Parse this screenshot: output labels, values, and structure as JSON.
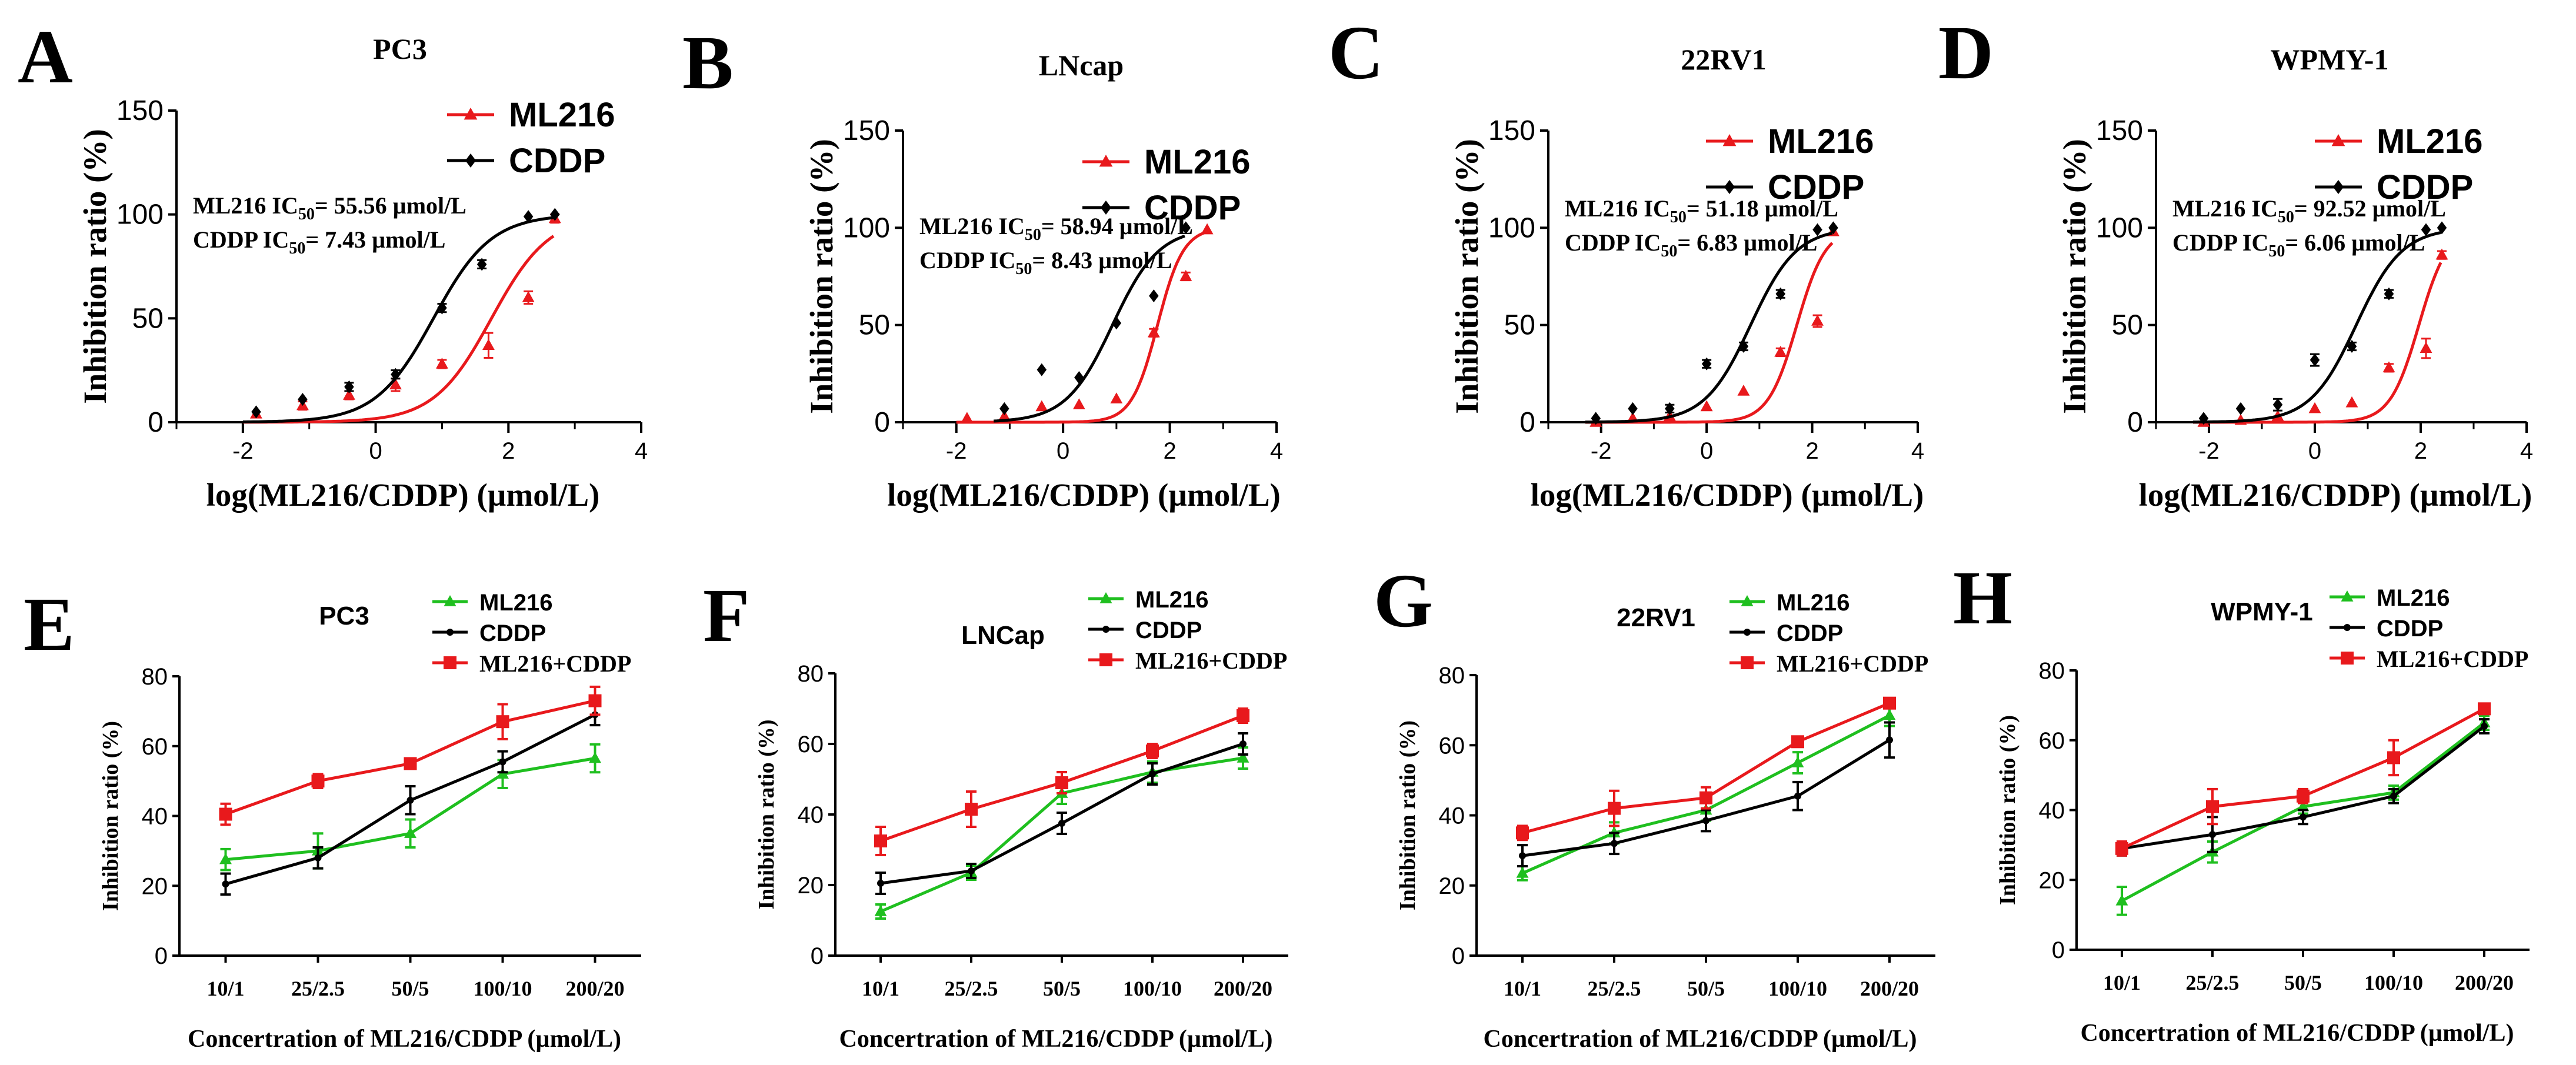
{
  "x_label_top": "log(ML216/CDDP) (µmol/L)",
  "y_label_top": "Inhibition ratio (%)",
  "x_label_bottom": "Concertration of ML216/CDDP (µmol/L)",
  "y_label_bottom": "Inhibition ratio (%)",
  "colors": {
    "ml216_top": "#e8191c",
    "cddp": "#000000",
    "ml216_bottom": "#1fbf1f",
    "combo": "#e8191c"
  },
  "chart_data": [
    {
      "panel": "A",
      "title": "PC3",
      "type": "scatter",
      "xlim": [
        -3,
        4
      ],
      "ylim": [
        0,
        150
      ],
      "x_ticks": [
        "-2",
        "0",
        "2",
        "4"
      ],
      "y_ticks": [
        "0",
        "50",
        "100",
        "150"
      ],
      "legend": [
        "ML216",
        "CDDP"
      ],
      "ic50_ml216": "ML216 IC",
      "ic50_ml216_value": "= 55.56 µmol/L",
      "ic50_cddp": "CDDP IC",
      "ic50_cddp_value": "= 7.43 µmol/L",
      "ic50_sub": "50",
      "series": [
        {
          "name": "ML216",
          "logic50": 1.745,
          "hill": 1.0,
          "x": [
            -1.8,
            -1.1,
            -0.4,
            0.3,
            1.0,
            1.7,
            2.3,
            2.7
          ],
          "y": [
            4,
            8,
            13,
            18,
            28,
            37,
            60,
            98
          ],
          "err": [
            1,
            2,
            2,
            3,
            2,
            6,
            3,
            2
          ]
        },
        {
          "name": "CDDP",
          "logic50": 0.871,
          "hill": 1.0,
          "x": [
            -1.8,
            -1.1,
            -0.4,
            0.3,
            1.0,
            1.6,
            2.3,
            2.7
          ],
          "y": [
            5,
            11,
            17,
            23,
            55,
            76,
            99,
            100
          ],
          "err": [
            1,
            1,
            2,
            2,
            2,
            2,
            1,
            1
          ]
        }
      ]
    },
    {
      "panel": "B",
      "title": "LNcap",
      "type": "scatter",
      "xlim": [
        -3,
        4
      ],
      "ylim": [
        0,
        150
      ],
      "x_ticks": [
        "-2",
        "0",
        "2",
        "4"
      ],
      "y_ticks": [
        "0",
        "50",
        "100",
        "150"
      ],
      "legend": [
        "ML216",
        "CDDP"
      ],
      "ic50_ml216": "ML216 IC",
      "ic50_ml216_value": "= 58.94 µmol/L",
      "ic50_cddp": "CDDP IC",
      "ic50_cddp_value": "= 8.43 µmol/L",
      "ic50_sub": "50",
      "series": [
        {
          "name": "ML216",
          "logic50": 1.77,
          "hill": 1.8,
          "x": [
            -1.8,
            -1.1,
            -0.4,
            0.3,
            1.0,
            1.7,
            2.3,
            2.7
          ],
          "y": [
            2,
            3,
            8,
            9,
            12,
            46,
            75,
            99
          ],
          "err": [
            1,
            1,
            1,
            1,
            1,
            2,
            2,
            1
          ]
        },
        {
          "name": "CDDP",
          "logic50": 0.926,
          "hill": 1.0,
          "x": [
            -1.1,
            -0.4,
            0.3,
            1.0,
            1.7,
            2.3
          ],
          "y": [
            7,
            27,
            23,
            51,
            65,
            100
          ],
          "err": [
            1,
            1,
            1,
            1,
            1,
            1
          ]
        }
      ]
    },
    {
      "panel": "C",
      "title": "22RV1",
      "type": "scatter",
      "xlim": [
        -3,
        4
      ],
      "ylim": [
        0,
        150
      ],
      "x_ticks": [
        "-2",
        "0",
        "2",
        "4"
      ],
      "y_ticks": [
        "0",
        "50",
        "100",
        "150"
      ],
      "legend": [
        "ML216",
        "CDDP"
      ],
      "ic50_ml216": "ML216 IC",
      "ic50_ml216_value": "= 51.18 µmol/L",
      "ic50_cddp": "CDDP IC",
      "ic50_cddp_value": "= 6.83 µmol/L",
      "ic50_sub": "50",
      "series": [
        {
          "name": "ML216",
          "logic50": 1.709,
          "hill": 1.6,
          "x": [
            -2.1,
            -1.4,
            -0.7,
            0.0,
            0.7,
            1.4,
            2.1,
            2.4
          ],
          "y": [
            0,
            2,
            3,
            8,
            16,
            36,
            52,
            98
          ],
          "err": [
            1,
            1,
            1,
            1,
            1,
            2,
            3,
            1
          ]
        },
        {
          "name": "CDDP",
          "logic50": 0.834,
          "hill": 1.0,
          "x": [
            -2.1,
            -1.4,
            -0.7,
            0.0,
            0.7,
            1.4,
            2.1,
            2.4
          ],
          "y": [
            2,
            7,
            7,
            30,
            39,
            66,
            99,
            100
          ],
          "err": [
            1,
            1,
            2,
            2,
            2,
            2,
            1,
            1
          ]
        }
      ]
    },
    {
      "panel": "D",
      "title": "WPMY-1",
      "type": "scatter",
      "xlim": [
        -3,
        4
      ],
      "ylim": [
        0,
        150
      ],
      "x_ticks": [
        "-2",
        "0",
        "2",
        "4"
      ],
      "y_ticks": [
        "0",
        "50",
        "100",
        "150"
      ],
      "legend": [
        "ML216",
        "CDDP"
      ],
      "ic50_ml216": "ML216 IC",
      "ic50_ml216_value": "= 92.52 µmol/L",
      "ic50_cddp": "CDDP IC",
      "ic50_cddp_value": "= 6.06 µmol/L",
      "ic50_sub": "50",
      "series": [
        {
          "name": "ML216",
          "logic50": 1.966,
          "hill": 1.6,
          "x": [
            -2.1,
            -1.4,
            -0.7,
            0.0,
            0.7,
            1.4,
            2.1,
            2.4
          ],
          "y": [
            0,
            1,
            3,
            7,
            10,
            28,
            38,
            86
          ],
          "err": [
            1,
            1,
            1,
            1,
            1,
            2,
            5,
            2
          ]
        },
        {
          "name": "CDDP",
          "logic50": 0.782,
          "hill": 1.0,
          "x": [
            -2.1,
            -1.4,
            -0.7,
            0.0,
            0.7,
            1.4,
            2.1,
            2.4
          ],
          "y": [
            2,
            7,
            9,
            32,
            39,
            66,
            99,
            100
          ],
          "err": [
            1,
            1,
            3,
            3,
            2,
            2,
            1,
            1
          ]
        }
      ]
    },
    {
      "panel": "E",
      "title": "PC3",
      "type": "line",
      "categories": [
        "10/1",
        "25/2.5",
        "50/5",
        "100/10",
        "200/20"
      ],
      "ylim": [
        0,
        80
      ],
      "y_ticks": [
        "0",
        "20",
        "40",
        "60",
        "80"
      ],
      "legend": [
        "ML216",
        "CDDP",
        "ML216+CDDP"
      ],
      "series": [
        {
          "name": "ML216",
          "values": [
            27.5,
            30,
            35,
            52,
            56.5
          ],
          "err": [
            3,
            5,
            4,
            4,
            4
          ]
        },
        {
          "name": "CDDP",
          "values": [
            20.5,
            28,
            44.5,
            55.5,
            69
          ],
          "err": [
            3,
            3,
            4,
            3,
            3
          ]
        },
        {
          "name": "ML216+CDDP",
          "values": [
            40.5,
            50,
            55,
            67,
            73
          ],
          "err": [
            3,
            2,
            1,
            5,
            4
          ]
        }
      ]
    },
    {
      "panel": "F",
      "title": "LNCap",
      "type": "line",
      "categories": [
        "10/1",
        "25/2.5",
        "50/5",
        "100/10",
        "200/20"
      ],
      "ylim": [
        0,
        80
      ],
      "y_ticks": [
        "0",
        "20",
        "40",
        "60",
        "80"
      ],
      "legend": [
        "ML216",
        "CDDP",
        "ML216+CDDP"
      ],
      "series": [
        {
          "name": "ML216",
          "values": [
            12.5,
            23.5,
            46,
            52,
            56
          ],
          "err": [
            2,
            2,
            3,
            3,
            3
          ]
        },
        {
          "name": "CDDP",
          "values": [
            20.5,
            24,
            37.5,
            51.5,
            60
          ],
          "err": [
            3,
            2,
            3,
            3,
            3
          ]
        },
        {
          "name": "ML216+CDDP",
          "values": [
            32.5,
            41.5,
            49,
            58,
            68
          ],
          "err": [
            4,
            5,
            3,
            2,
            2
          ]
        }
      ]
    },
    {
      "panel": "G",
      "title": "22RV1",
      "type": "line",
      "categories": [
        "10/1",
        "25/2.5",
        "50/5",
        "100/10",
        "200/20"
      ],
      "ylim": [
        0,
        80
      ],
      "y_ticks": [
        "0",
        "20",
        "40",
        "60",
        "80"
      ],
      "legend": [
        "ML216",
        "CDDP",
        "ML216+CDDP"
      ],
      "series": [
        {
          "name": "ML216",
          "values": [
            23.5,
            35,
            41.5,
            55,
            68.5
          ],
          "err": [
            2,
            3,
            3,
            3,
            3
          ]
        },
        {
          "name": "CDDP",
          "values": [
            28.5,
            32,
            38.5,
            45.5,
            61.5
          ],
          "err": [
            3,
            3,
            3,
            4,
            5
          ]
        },
        {
          "name": "ML216+CDDP",
          "values": [
            35,
            42,
            45,
            61,
            72
          ],
          "err": [
            2,
            5,
            3,
            1,
            1
          ]
        }
      ]
    },
    {
      "panel": "H",
      "title": "WPMY-1",
      "type": "line",
      "categories": [
        "10/1",
        "25/2.5",
        "50/5",
        "100/10",
        "200/20"
      ],
      "ylim": [
        0,
        80
      ],
      "y_ticks": [
        "0",
        "20",
        "40",
        "60",
        "80"
      ],
      "legend": [
        "ML216",
        "CDDP",
        "ML216+CDDP"
      ],
      "series": [
        {
          "name": "ML216",
          "values": [
            14,
            28,
            41,
            45,
            65
          ],
          "err": [
            4,
            3,
            2,
            2,
            2
          ]
        },
        {
          "name": "CDDP",
          "values": [
            29,
            33,
            38,
            44,
            64
          ],
          "err": [
            2,
            5,
            2,
            2,
            2
          ]
        },
        {
          "name": "ML216+CDDP",
          "values": [
            29,
            41,
            44,
            55,
            69
          ],
          "err": [
            2,
            5,
            2,
            5,
            1
          ]
        }
      ]
    }
  ]
}
